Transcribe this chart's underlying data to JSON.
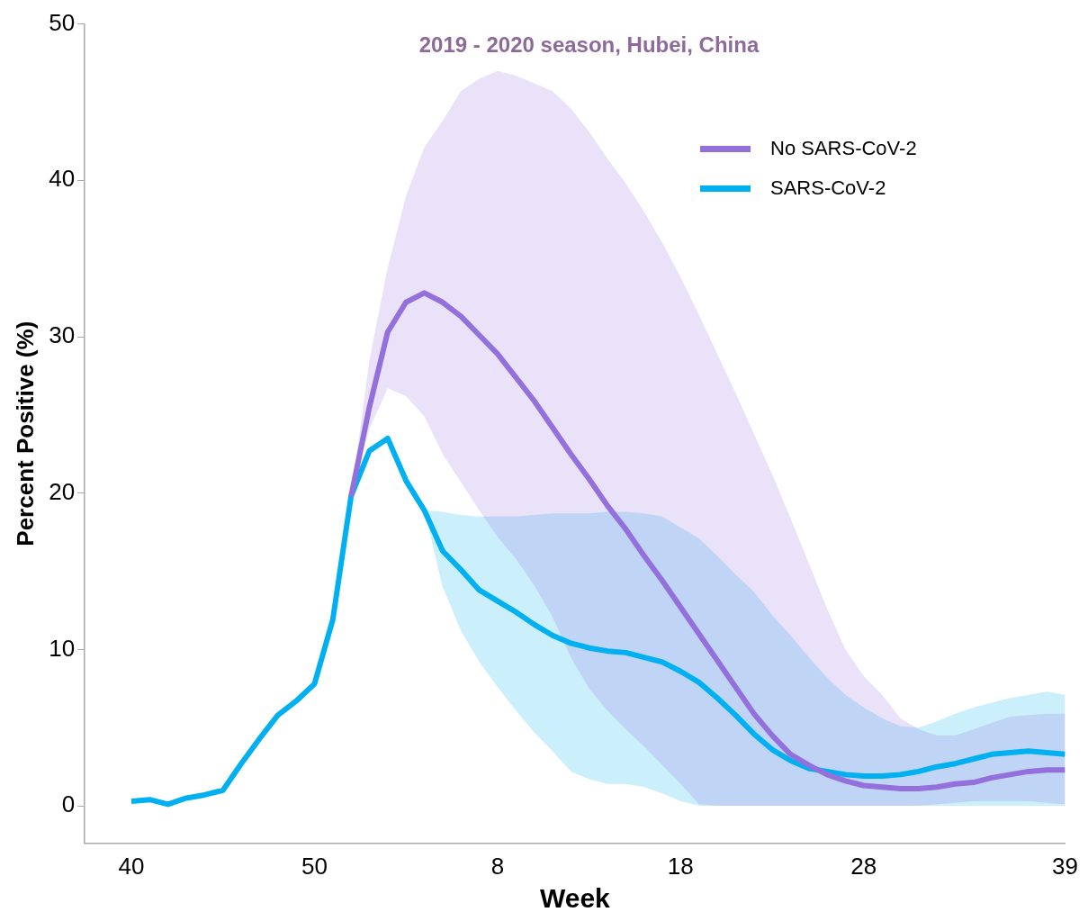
{
  "chart_data": {
    "type": "line",
    "title": "2019 - 2020 season, Hubei, China",
    "xlabel": "Week",
    "ylabel": "Percent Positive (%)",
    "categories": [
      "40",
      null,
      null,
      null,
      null,
      null,
      null,
      null,
      null,
      null,
      "50",
      null,
      null,
      null,
      null,
      null,
      null,
      null,
      null,
      null,
      "8",
      null,
      null,
      null,
      null,
      null,
      null,
      null,
      null,
      null,
      "18",
      null,
      null,
      null,
      null,
      null,
      null,
      null,
      null,
      null,
      "28",
      null,
      null,
      null,
      null,
      null,
      null,
      null,
      null,
      null,
      null,
      "39"
    ],
    "ylim": [
      -2.4,
      50
    ],
    "yticks": [
      0,
      10,
      20,
      30,
      40,
      50
    ],
    "grid": false,
    "legend": "top right",
    "marker": "none",
    "line_style": "solid",
    "series": [
      {
        "name": "No SARS-CoV-2",
        "color": "#9370db",
        "values": [
          null,
          null,
          null,
          null,
          null,
          null,
          null,
          null,
          null,
          null,
          null,
          null,
          19.8,
          25.5,
          30.3,
          32.2,
          32.8,
          32.2,
          31.3,
          30.1,
          28.9,
          27.4,
          25.9,
          24.2,
          22.5,
          20.9,
          19.2,
          17.7,
          16.0,
          14.4,
          12.7,
          11.0,
          9.3,
          7.6,
          5.9,
          4.5,
          3.3,
          2.6,
          2.0,
          1.6,
          1.3,
          1.2,
          1.1,
          1.1,
          1.2,
          1.4,
          1.5,
          1.8,
          2.0,
          2.2,
          2.3,
          2.3
        ],
        "upper": [
          null,
          null,
          null,
          null,
          null,
          null,
          null,
          null,
          null,
          null,
          null,
          null,
          19.8,
          28.5,
          34.4,
          39.0,
          42.1,
          43.8,
          45.7,
          46.5,
          47.0,
          46.7,
          46.2,
          45.7,
          44.6,
          43.1,
          41.4,
          39.8,
          38.0,
          36.0,
          33.8,
          31.4,
          28.9,
          26.4,
          23.8,
          21.2,
          18.4,
          15.5,
          12.6,
          10.0,
          8.3,
          7.1,
          5.6,
          4.9,
          4.5,
          4.5,
          4.9,
          5.3,
          5.7,
          5.8,
          5.9,
          5.9
        ],
        "lower": [
          null,
          null,
          null,
          null,
          null,
          null,
          null,
          null,
          null,
          null,
          null,
          null,
          19.8,
          24.1,
          26.7,
          26.2,
          24.9,
          22.5,
          20.7,
          18.9,
          17.2,
          15.8,
          14.1,
          12.1,
          9.5,
          7.5,
          6.1,
          4.9,
          3.8,
          2.6,
          1.4,
          0.1,
          0,
          0,
          0,
          0,
          0,
          0,
          0,
          0,
          0,
          0,
          0,
          0,
          0.1,
          0.2,
          0.3,
          0.3,
          0.3,
          0.3,
          0.2,
          0.1
        ]
      },
      {
        "name": "SARS-CoV-2",
        "color": "#00b0f0",
        "values": [
          0.3,
          0.4,
          0.1,
          0.5,
          0.7,
          1.0,
          2.7,
          4.3,
          5.8,
          6.7,
          7.8,
          11.9,
          19.8,
          22.7,
          23.5,
          20.8,
          18.9,
          16.3,
          15.1,
          13.8,
          13.1,
          12.4,
          11.6,
          10.9,
          10.4,
          10.1,
          9.9,
          9.8,
          9.5,
          9.2,
          8.6,
          7.9,
          6.9,
          5.8,
          4.6,
          3.6,
          2.9,
          2.4,
          2.2,
          2.0,
          1.9,
          1.9,
          2.0,
          2.2,
          2.5,
          2.7,
          3.0,
          3.3,
          3.4,
          3.5,
          3.4,
          3.3
        ],
        "upper": [
          null,
          null,
          null,
          null,
          null,
          null,
          null,
          null,
          null,
          null,
          null,
          null,
          null,
          null,
          null,
          null,
          18.9,
          18.8,
          18.6,
          18.5,
          18.5,
          18.5,
          18.6,
          18.7,
          18.7,
          18.7,
          18.8,
          18.8,
          18.7,
          18.5,
          17.8,
          17.1,
          16.0,
          14.8,
          13.7,
          12.2,
          10.9,
          9.5,
          8.2,
          7.1,
          6.3,
          5.6,
          5.1,
          5.0,
          5.4,
          5.9,
          6.3,
          6.6,
          6.9,
          7.1,
          7.3,
          7.1
        ],
        "lower": [
          null,
          null,
          null,
          null,
          null,
          null,
          null,
          null,
          null,
          null,
          null,
          null,
          null,
          null,
          null,
          null,
          18.9,
          14.0,
          11.2,
          9.2,
          7.6,
          6.1,
          4.7,
          3.5,
          2.2,
          1.7,
          1.4,
          1.4,
          1.2,
          0.8,
          0.3,
          0,
          0,
          0,
          0,
          0,
          0,
          0,
          0,
          0,
          0,
          0,
          0,
          0,
          0,
          0,
          0,
          0,
          0,
          0,
          0,
          0
        ]
      }
    ]
  }
}
